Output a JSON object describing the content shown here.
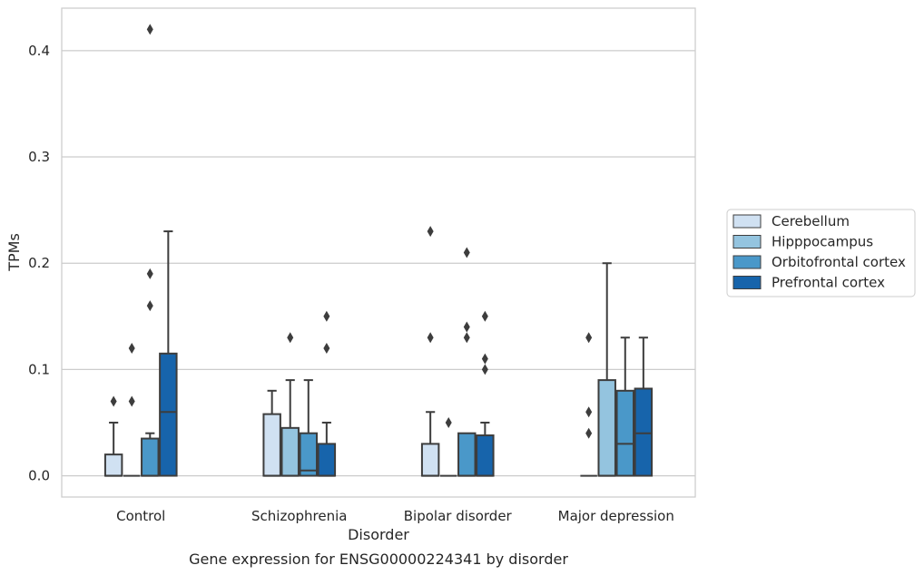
{
  "chart_data": {
    "type": "box",
    "title": "Gene expression for ENSG00000224341 by disorder",
    "xlabel": "Disorder",
    "ylabel": "TPMs",
    "ylim": [
      -0.02,
      0.44
    ],
    "yticks": [
      "0.0",
      "0.1",
      "0.2",
      "0.3",
      "0.4"
    ],
    "ytick_values": [
      0.0,
      0.1,
      0.2,
      0.3,
      0.4
    ],
    "categories": [
      "Control",
      "Schizophrenia",
      "Bipolar disorder",
      "Major depression"
    ],
    "grid": "horizontal",
    "legend_position": "right",
    "series": [
      {
        "name": "Cerebellum",
        "color": "#d0e1f2",
        "boxes": [
          {
            "q1": 0.0,
            "median": 0.0,
            "q3": 0.02,
            "whislo": 0.0,
            "whishi": 0.05,
            "fliers": [
              0.07
            ]
          },
          {
            "q1": 0.0,
            "median": 0.0,
            "q3": 0.058,
            "whislo": 0.0,
            "whishi": 0.08,
            "fliers": []
          },
          {
            "q1": 0.0,
            "median": 0.0,
            "q3": 0.03,
            "whislo": 0.0,
            "whishi": 0.06,
            "fliers": [
              0.13,
              0.23
            ]
          },
          {
            "q1": 0.0,
            "median": 0.0,
            "q3": 0.0,
            "whislo": 0.0,
            "whishi": 0.0,
            "fliers": [
              0.04,
              0.06,
              0.13
            ]
          }
        ]
      },
      {
        "name": "Hipppocampus",
        "color": "#94c4df",
        "boxes": [
          {
            "q1": 0.0,
            "median": 0.0,
            "q3": 0.0,
            "whislo": 0.0,
            "whishi": 0.0,
            "fliers": [
              0.07,
              0.12
            ]
          },
          {
            "q1": 0.0,
            "median": 0.0,
            "q3": 0.045,
            "whislo": 0.0,
            "whishi": 0.09,
            "fliers": [
              0.13
            ]
          },
          {
            "q1": 0.0,
            "median": 0.0,
            "q3": 0.0,
            "whislo": 0.0,
            "whishi": 0.0,
            "fliers": [
              0.05
            ]
          },
          {
            "q1": 0.0,
            "median": 0.0,
            "q3": 0.09,
            "whislo": 0.0,
            "whishi": 0.2,
            "fliers": []
          }
        ]
      },
      {
        "name": "Orbitofrontal cortex",
        "color": "#4a98c9",
        "boxes": [
          {
            "q1": 0.0,
            "median": 0.0,
            "q3": 0.035,
            "whislo": 0.0,
            "whishi": 0.04,
            "fliers": [
              0.16,
              0.19,
              0.42
            ]
          },
          {
            "q1": 0.0,
            "median": 0.005,
            "q3": 0.04,
            "whislo": 0.0,
            "whishi": 0.09,
            "fliers": []
          },
          {
            "q1": 0.0,
            "median": 0.0,
            "q3": 0.04,
            "whislo": 0.0,
            "whishi": 0.04,
            "fliers": [
              0.13,
              0.14,
              0.21
            ]
          },
          {
            "q1": 0.0,
            "median": 0.03,
            "q3": 0.08,
            "whislo": 0.0,
            "whishi": 0.13,
            "fliers": []
          }
        ]
      },
      {
        "name": "Prefrontal cortex",
        "color": "#1764ab",
        "boxes": [
          {
            "q1": 0.0,
            "median": 0.06,
            "q3": 0.115,
            "whislo": 0.0,
            "whishi": 0.23,
            "fliers": []
          },
          {
            "q1": 0.0,
            "median": 0.0,
            "q3": 0.03,
            "whislo": 0.0,
            "whishi": 0.05,
            "fliers": [
              0.12,
              0.15
            ]
          },
          {
            "q1": 0.0,
            "median": 0.0,
            "q3": 0.038,
            "whislo": 0.0,
            "whishi": 0.05,
            "fliers": [
              0.1,
              0.11,
              0.15
            ]
          },
          {
            "q1": 0.0,
            "median": 0.04,
            "q3": 0.082,
            "whislo": 0.0,
            "whishi": 0.13,
            "fliers": []
          }
        ]
      }
    ]
  }
}
